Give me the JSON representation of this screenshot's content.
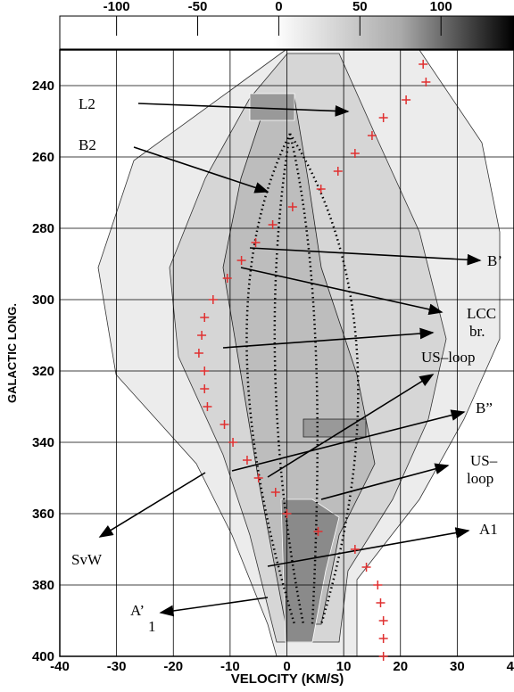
{
  "chart_data": {
    "type": "scatter",
    "xlabel": "VELOCITY (KM/S)",
    "ylabel": "GALACTIC LONG.",
    "xlim": [
      -40,
      40
    ],
    "xticks": [
      -40,
      -30,
      -20,
      -10,
      0,
      10,
      20,
      30,
      40
    ],
    "ylim": [
      230,
      400
    ],
    "yticks": [
      240,
      260,
      280,
      300,
      320,
      340,
      360,
      380,
      400
    ],
    "y_inverted": true,
    "grid": true,
    "colorbar_lim": [
      -135,
      145
    ],
    "colorbar_ticks": [
      -100,
      -50,
      0,
      50,
      100
    ],
    "color": "#e03030",
    "x": [
      24,
      24.5,
      21,
      17,
      15,
      12,
      9,
      6,
      1,
      -2.5,
      -5.5,
      -8,
      -10.5,
      -13,
      -14.5,
      -15,
      -15.5,
      -14.5,
      -14.5,
      -14,
      -11,
      -9.5,
      -7,
      -5,
      -2,
      0,
      5.5,
      12,
      14,
      16,
      16.5,
      17,
      17,
      17
    ],
    "values": [
      234,
      239,
      244,
      249,
      254,
      259,
      264,
      269,
      274,
      279,
      284,
      289,
      294,
      300,
      305,
      310,
      315,
      320,
      325,
      330,
      335,
      340,
      345,
      350,
      354,
      360,
      365,
      370,
      375,
      380,
      385,
      390,
      395,
      400
    ],
    "annotations": [
      "L2",
      "B2",
      "B’",
      "LCC",
      "br.",
      "US–loop",
      "B”",
      "US–",
      "loop",
      "A1",
      "SvW",
      "A’",
      "1"
    ]
  }
}
